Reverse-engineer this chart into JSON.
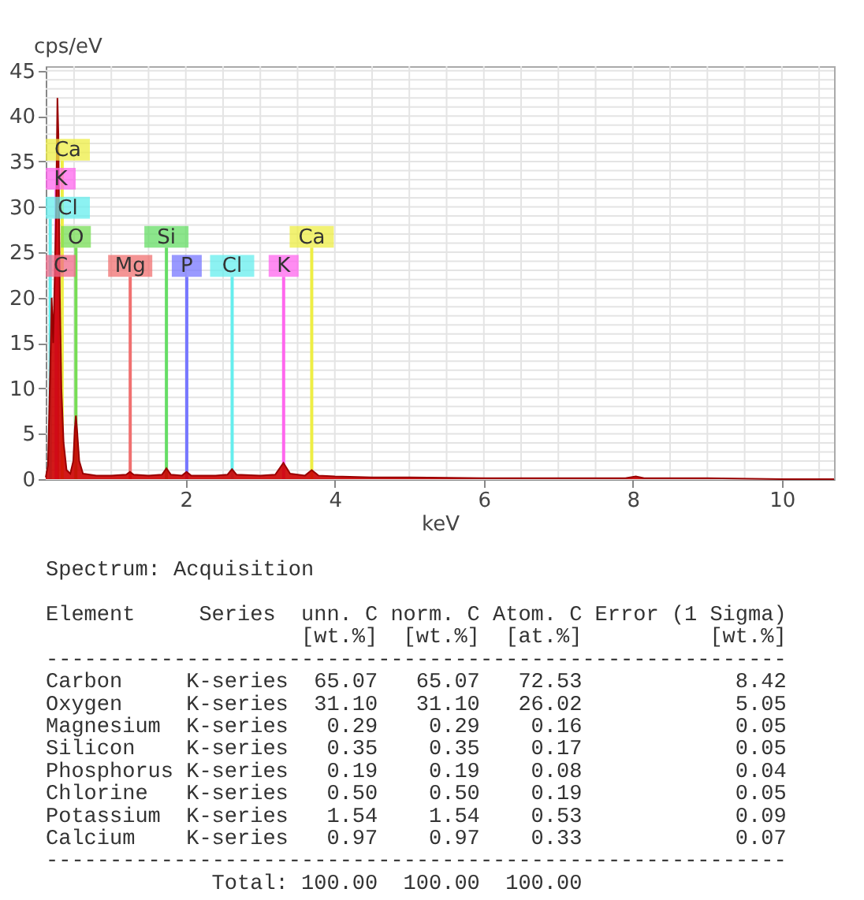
{
  "chart_data": {
    "type": "area",
    "xlabel": "keV",
    "ylabel": "cps/eV",
    "xlim": [
      0.12,
      10.7
    ],
    "ylim": [
      0,
      45.5
    ],
    "xticks": [
      {
        "value": 0.5,
        "label": null
      },
      {
        "value": 1,
        "label": null
      },
      {
        "value": 1.5,
        "label": null
      },
      2,
      {
        "value": 2.5,
        "label": null
      },
      {
        "value": 3,
        "label": null
      },
      {
        "value": 3.5,
        "label": null
      },
      4,
      {
        "value": 4.5,
        "label": null
      },
      {
        "value": 5,
        "label": null
      },
      {
        "value": 5.5,
        "label": null
      },
      6,
      {
        "value": 6.5,
        "label": null
      },
      {
        "value": 7,
        "label": null
      },
      {
        "value": 7.5,
        "label": null
      },
      8,
      {
        "value": 8.5,
        "label": null
      },
      {
        "value": 9,
        "label": null
      },
      {
        "value": 9.5,
        "label": null
      },
      10,
      {
        "value": 10.5,
        "label": null
      }
    ],
    "yticks": [
      0,
      {
        "value": 1,
        "label": null
      },
      {
        "value": 2,
        "label": null
      },
      {
        "value": 3,
        "label": null
      },
      {
        "value": 4,
        "label": null
      },
      5,
      {
        "value": 6,
        "label": null
      },
      {
        "value": 7,
        "label": null
      },
      {
        "value": 8,
        "label": null
      },
      {
        "value": 9,
        "label": null
      },
      10,
      {
        "value": 11,
        "label": null
      },
      {
        "value": 12,
        "label": null
      },
      {
        "value": 13,
        "label": null
      },
      {
        "value": 14,
        "label": null
      },
      15,
      {
        "value": 16,
        "label": null
      },
      {
        "value": 17,
        "label": null
      },
      {
        "value": 18,
        "label": null
      },
      {
        "value": 19,
        "label": null
      },
      20,
      {
        "value": 21,
        "label": null
      },
      {
        "value": 22,
        "label": null
      },
      {
        "value": 23,
        "label": null
      },
      {
        "value": 24,
        "label": null
      },
      25,
      {
        "value": 26,
        "label": null
      },
      {
        "value": 27,
        "label": null
      },
      {
        "value": 28,
        "label": null
      },
      {
        "value": 29,
        "label": null
      },
      30,
      {
        "value": 31,
        "label": null
      },
      {
        "value": 32,
        "label": null
      },
      {
        "value": 33,
        "label": null
      },
      {
        "value": 34,
        "label": null
      },
      35,
      {
        "value": 36,
        "label": null
      },
      {
        "value": 37,
        "label": null
      },
      {
        "value": 38,
        "label": null
      },
      {
        "value": 39,
        "label": null
      },
      40,
      {
        "value": 41,
        "label": null
      },
      {
        "value": 42,
        "label": null
      },
      {
        "value": 43,
        "label": null
      },
      {
        "value": 44,
        "label": null
      },
      45
    ],
    "grid": true,
    "x": [
      0.12,
      0.15,
      0.18,
      0.2,
      0.22,
      0.24,
      0.26,
      0.277,
      0.29,
      0.31,
      0.33,
      0.36,
      0.4,
      0.45,
      0.49,
      0.51,
      0.525,
      0.54,
      0.57,
      0.62,
      0.8,
      1.0,
      1.2,
      1.25,
      1.3,
      1.5,
      1.68,
      1.74,
      1.8,
      1.95,
      2.01,
      2.07,
      2.4,
      2.56,
      2.62,
      2.68,
      3.0,
      3.2,
      3.31,
      3.4,
      3.6,
      3.69,
      3.78,
      4.0,
      4.5,
      5.0,
      6.0,
      7.0,
      7.9,
      8.04,
      8.15,
      9.0,
      10.0,
      10.7
    ],
    "series": [
      {
        "color": "#cc0000",
        "values": [
          0.2,
          1.5,
          12,
          20,
          15,
          22,
          30,
          42,
          38,
          20,
          10,
          4,
          1,
          0.6,
          2,
          5.5,
          7,
          5.5,
          2,
          0.6,
          0.4,
          0.4,
          0.5,
          0.8,
          0.5,
          0.4,
          0.5,
          1.2,
          0.5,
          0.4,
          0.8,
          0.4,
          0.4,
          0.5,
          1.1,
          0.5,
          0.4,
          0.5,
          1.8,
          0.6,
          0.4,
          1.0,
          0.4,
          0.3,
          0.2,
          0.2,
          0.1,
          0.1,
          0.1,
          0.3,
          0.1,
          0.1,
          0.0,
          0.0
        ]
      }
    ],
    "ref_lines": [
      {
        "axis": "x",
        "value": 0.277,
        "label": "C",
        "color": "#f06a8a"
      },
      {
        "axis": "x",
        "value": 0.525,
        "label": "O",
        "color": "#77dd55"
      },
      {
        "axis": "x",
        "value": 1.254,
        "label": "Mg",
        "color": "#f07070"
      },
      {
        "axis": "x",
        "value": 1.74,
        "label": "Si",
        "color": "#66dd66"
      },
      {
        "axis": "x",
        "value": 2.013,
        "label": "P",
        "color": "#7777ff"
      },
      {
        "axis": "x",
        "value": 2.622,
        "label": "Cl",
        "color": "#66eeee"
      },
      {
        "axis": "x",
        "value": 3.313,
        "label": "K",
        "color": "#ff66ee"
      },
      {
        "axis": "x",
        "value": 3.69,
        "label": "Ca",
        "color": "#eeee44"
      },
      {
        "axis": "x",
        "value": 0.18,
        "label": "Cl",
        "color": "#66eeee"
      },
      {
        "axis": "x",
        "value": 0.26,
        "label": "K",
        "color": "#ff66ee"
      },
      {
        "axis": "x",
        "value": 0.341,
        "label": "Ca",
        "color": "#eeee44"
      }
    ],
    "annotations": [
      "Spectrum: Acquisition",
      "Element     Series  unn. C norm. C Atom. C Error (1 Sigma)",
      "                    [wt.%]  [wt.%]  [at.%]          [wt.%]",
      "----------------------------------------------------------",
      "Carbon     K-series  65.07   65.07   72.53            8.42",
      "Oxygen     K-series  31.10   31.10   26.02            5.05",
      "Magnesium  K-series   0.29    0.29    0.16            0.05",
      "Silicon    K-series   0.35    0.35    0.17            0.05",
      "Phosphorus K-series   0.19    0.19    0.08            0.04",
      "Chlorine   K-series   0.50    0.50    0.19            0.05",
      "Potassium  K-series   1.54    1.54    0.53            0.09",
      "Calcium    K-series   0.97    0.97    0.33            0.07",
      "----------------------------------------------------------",
      "             Total: 100.00  100.00  100.00"
    ]
  }
}
